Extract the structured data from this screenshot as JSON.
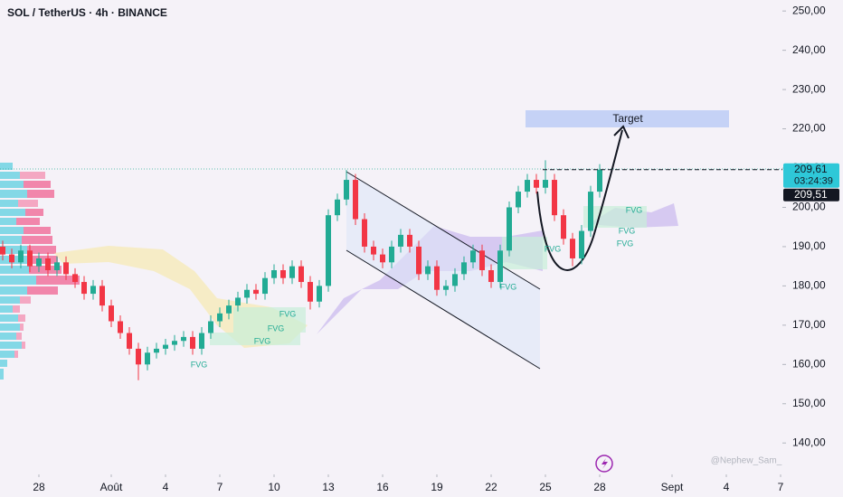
{
  "chart_data": {
    "type": "candlestick",
    "title": "SOL / TetherUS · 4h · BINANCE",
    "x": [
      -2,
      -1.5,
      -1,
      -0.5,
      0,
      0.5,
      1,
      1.5,
      2,
      2.5,
      3,
      3.5,
      4,
      4.5,
      5,
      5.5,
      6,
      6.5,
      7,
      7.5,
      8,
      8.5,
      9,
      9.5,
      10,
      10.5,
      11,
      11.5,
      12,
      12.5,
      13,
      13.5,
      14,
      14.5,
      15,
      15.5,
      16,
      16.5,
      17,
      17.5,
      18,
      18.5,
      19,
      19.5,
      20,
      20.5,
      21,
      21.5,
      22,
      22.5,
      23,
      23.5,
      24,
      24.5,
      25,
      25.5,
      26,
      26.5,
      27,
      27.5,
      28,
      28.5,
      29,
      29.5,
      30,
      30.5,
      31
    ],
    "open": [
      190,
      188,
      186,
      189,
      185,
      187,
      184,
      186,
      183,
      181,
      178,
      180,
      175,
      171,
      168,
      164,
      160,
      163,
      164,
      165,
      166,
      167,
      164,
      168,
      171,
      173,
      175,
      177,
      179,
      178,
      182,
      184,
      182,
      185,
      181,
      176,
      180,
      198,
      202,
      207,
      197,
      190,
      188,
      186,
      190,
      193,
      190,
      183,
      185,
      179,
      180,
      183,
      186,
      189,
      184,
      181,
      189,
      200,
      204,
      207,
      205,
      207,
      198,
      192,
      187,
      194,
      204
    ],
    "high": [
      191.5,
      189.5,
      190.5,
      190.5,
      188.5,
      188.5,
      187.5,
      187.5,
      184.5,
      182.5,
      181.5,
      181.5,
      176.5,
      172.5,
      169.5,
      165.5,
      164.5,
      165.5,
      166.5,
      167.5,
      168.5,
      168.5,
      169.5,
      172.5,
      174.5,
      176.5,
      178.5,
      180.5,
      180.5,
      183.5,
      185.5,
      185.5,
      186.5,
      186.5,
      182.5,
      181.5,
      199.5,
      203.5,
      209.5,
      208.5,
      198.5,
      191.5,
      189.5,
      191.5,
      194.5,
      194.5,
      191.5,
      186.5,
      186.5,
      181.5,
      184.5,
      187.5,
      190.5,
      190.5,
      185.5,
      190.5,
      201.5,
      205.5,
      208.5,
      208.5,
      212,
      208.5,
      199.5,
      193.5,
      195.5,
      205.5,
      211
    ],
    "low": [
      186.5,
      184.5,
      184.5,
      183.5,
      183.5,
      182.5,
      182.5,
      181.5,
      179.5,
      176.5,
      176.5,
      173.5,
      169.5,
      166.5,
      162.5,
      156,
      158.5,
      161.5,
      162.5,
      163.5,
      164.5,
      162.5,
      162.5,
      166.5,
      169.5,
      171.5,
      173.5,
      175.5,
      176.5,
      176.5,
      180.5,
      180.5,
      180.5,
      179.5,
      174,
      174.5,
      178.5,
      196.5,
      200.5,
      195.5,
      188.5,
      186.5,
      184.5,
      184.5,
      188.5,
      188.5,
      181.5,
      181.5,
      177.5,
      177.5,
      178.5,
      181.5,
      184.5,
      182.5,
      179.5,
      179.5,
      187.5,
      198.5,
      202.5,
      203.5,
      203.5,
      196.5,
      190.5,
      185,
      185.5,
      192.5,
      202.5
    ],
    "close": [
      188,
      186,
      189,
      185,
      187,
      184,
      186,
      183,
      181,
      178,
      180,
      175,
      171,
      168,
      164,
      160,
      163,
      164,
      165,
      166,
      167,
      164,
      168,
      171,
      173,
      175,
      177,
      179,
      178,
      182,
      184,
      182,
      185,
      181,
      176,
      180,
      198,
      202,
      207,
      197,
      190,
      188,
      186,
      190,
      193,
      190,
      183,
      185,
      179,
      180,
      183,
      186,
      189,
      184,
      181,
      189,
      200,
      204,
      207,
      205,
      207,
      198,
      192,
      187,
      194,
      204,
      209.61
    ],
    "up_color": "#22ab94",
    "down_color": "#f23645",
    "xlim": [
      -2.15,
      41.1
    ],
    "xticks": [
      {
        "value": 0,
        "label": "28"
      },
      {
        "value": 4,
        "label": "Août"
      },
      {
        "value": 7,
        "label": "4"
      },
      {
        "value": 10,
        "label": "7"
      },
      {
        "value": 13,
        "label": "10"
      },
      {
        "value": 16,
        "label": "13"
      },
      {
        "value": 19,
        "label": "16"
      },
      {
        "value": 22,
        "label": "19"
      },
      {
        "value": 25,
        "label": "22"
      },
      {
        "value": 28,
        "label": "25"
      },
      {
        "value": 31,
        "label": "28"
      },
      {
        "value": 35,
        "label": "Sept"
      },
      {
        "value": 38,
        "label": "4"
      },
      {
        "value": 41,
        "label": "7"
      }
    ],
    "ylim": [
      132,
      252.8
    ],
    "yticks": [
      {
        "value": 140,
        "label": "140,00"
      },
      {
        "value": 150,
        "label": "150,00"
      },
      {
        "value": 160,
        "label": "160,00"
      },
      {
        "value": 170,
        "label": "170,00"
      },
      {
        "value": 180,
        "label": "180,00"
      },
      {
        "value": 190,
        "label": "190,00"
      },
      {
        "value": 200,
        "label": "200,00"
      },
      {
        "value": 210,
        "label": "210,00"
      },
      {
        "value": 220,
        "label": "220,00"
      },
      {
        "value": 230,
        "label": "230,00"
      },
      {
        "value": 240,
        "label": "240,00"
      },
      {
        "value": 250,
        "label": "250,00"
      }
    ],
    "last_price_label": "209,61",
    "countdown": "03:24:39",
    "second_price_label": "209,51",
    "annotations": {
      "target": "Target",
      "fvg": [
        "FVG",
        "FVG",
        "FVG",
        "FVG",
        "FVG",
        "FVG",
        "FVG",
        "FVG",
        "FVG"
      ],
      "watermark": "@Nephew_Sam_"
    }
  }
}
